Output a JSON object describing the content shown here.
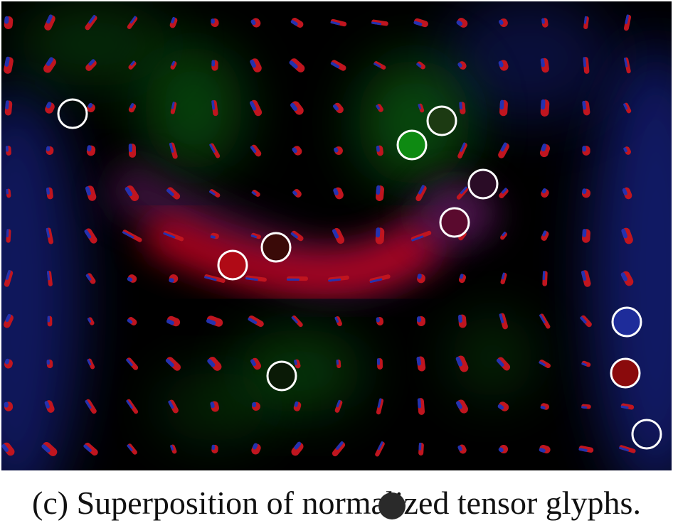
{
  "figure": {
    "caption": "(c) Superposition of normalized tensor glyphs.",
    "colors": {
      "background": "#000000",
      "red_field": "#d4001a",
      "green_field": "#0f7a12",
      "blue_field": "#1b2aa8",
      "purple_field": "#6a1a6a",
      "glyph_red": "#c0151f",
      "glyph_blue": "#2432b0",
      "marker_outline": "#ffffff"
    }
  }
}
